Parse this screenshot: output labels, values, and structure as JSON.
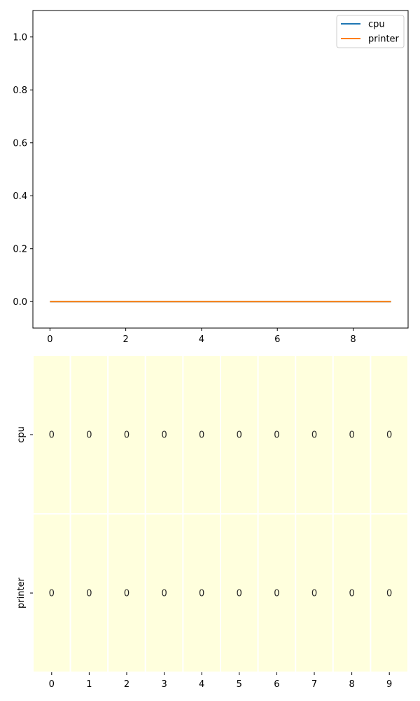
{
  "chart_data": [
    {
      "type": "line",
      "x": [
        0,
        1,
        2,
        3,
        4,
        5,
        6,
        7,
        8,
        9
      ],
      "series": [
        {
          "name": "cpu",
          "values": [
            0,
            0,
            0,
            0,
            0,
            0,
            0,
            0,
            0,
            0
          ],
          "color": "#1f77b4"
        },
        {
          "name": "printer",
          "values": [
            0,
            0,
            0,
            0,
            0,
            0,
            0,
            0,
            0,
            0
          ],
          "color": "#ff7f0e"
        }
      ],
      "xlim": [
        -0.45,
        9.45
      ],
      "ylim": [
        -0.1,
        1.1
      ],
      "xticks": [
        0,
        2,
        4,
        6,
        8
      ],
      "yticks": [
        0.0,
        0.2,
        0.4,
        0.6,
        0.8,
        1.0
      ],
      "grid": false,
      "legend_position": "top-right"
    },
    {
      "type": "heatmap",
      "rows": [
        "cpu",
        "printer"
      ],
      "columns": [
        "0",
        "1",
        "2",
        "3",
        "4",
        "5",
        "6",
        "7",
        "8",
        "9"
      ],
      "values": [
        [
          0,
          0,
          0,
          0,
          0,
          0,
          0,
          0,
          0,
          0
        ],
        [
          0,
          0,
          0,
          0,
          0,
          0,
          0,
          0,
          0,
          0
        ]
      ],
      "cell_color": "#ffffdd",
      "annotated": true
    }
  ]
}
